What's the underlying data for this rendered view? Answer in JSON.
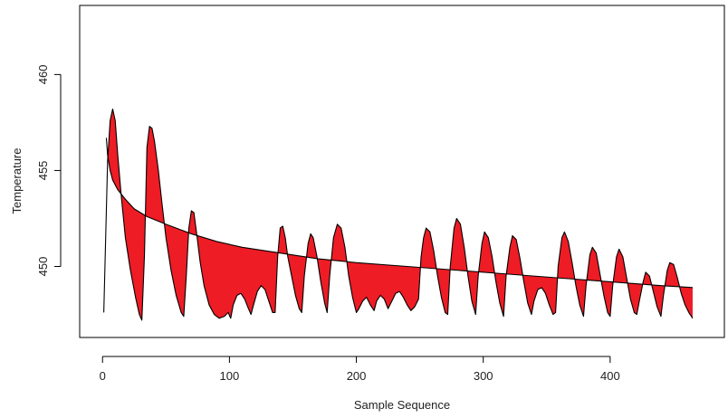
{
  "chart_data": {
    "type": "area",
    "title": "",
    "xlabel": "Sample Sequence",
    "ylabel": "Temperature",
    "xlim": [
      -18,
      490
    ],
    "ylim": [
      446.3,
      463.6
    ],
    "x_ticks": [
      0,
      100,
      200,
      300,
      400
    ],
    "y_ticks": [
      450,
      455,
      460
    ],
    "grid": false,
    "legend": "none",
    "fill_color": "#ee1c25",
    "line_color": "#000000",
    "series": [
      {
        "role": "observed",
        "points": [
          [
            1,
            447.6
          ],
          [
            4,
            455.5
          ],
          [
            6,
            457.6
          ],
          [
            8,
            458.2
          ],
          [
            10,
            457.6
          ],
          [
            12,
            455.8
          ],
          [
            15,
            453.5
          ],
          [
            18,
            451.5
          ],
          [
            22,
            449.8
          ],
          [
            26,
            448.4
          ],
          [
            29,
            447.5
          ],
          [
            31,
            447.2
          ],
          [
            33,
            450.5
          ],
          [
            35,
            456.2
          ],
          [
            37,
            457.3
          ],
          [
            39,
            457.2
          ],
          [
            41,
            456.5
          ],
          [
            44,
            455.0
          ],
          [
            47,
            453.2
          ],
          [
            50,
            451.5
          ],
          [
            54,
            449.8
          ],
          [
            58,
            448.5
          ],
          [
            62,
            447.6
          ],
          [
            64,
            447.4
          ],
          [
            66,
            449.5
          ],
          [
            68,
            452.0
          ],
          [
            70,
            452.9
          ],
          [
            72,
            452.8
          ],
          [
            74,
            451.8
          ],
          [
            77,
            450.2
          ],
          [
            80,
            449.0
          ],
          [
            84,
            448.0
          ],
          [
            88,
            447.5
          ],
          [
            92,
            447.3
          ],
          [
            96,
            447.4
          ],
          [
            99,
            447.6
          ],
          [
            101,
            447.3
          ],
          [
            103,
            448.0
          ],
          [
            106,
            448.5
          ],
          [
            109,
            448.6
          ],
          [
            112,
            448.3
          ],
          [
            115,
            447.8
          ],
          [
            117,
            447.5
          ],
          [
            119,
            448.0
          ],
          [
            122,
            448.7
          ],
          [
            125,
            449.0
          ],
          [
            128,
            448.8
          ],
          [
            131,
            448.2
          ],
          [
            134,
            447.6
          ],
          [
            136,
            447.6
          ],
          [
            138,
            450.5
          ],
          [
            140,
            452.0
          ],
          [
            142,
            452.1
          ],
          [
            144,
            451.5
          ],
          [
            146,
            450.5
          ],
          [
            149,
            449.5
          ],
          [
            152,
            448.5
          ],
          [
            155,
            447.8
          ],
          [
            157,
            447.6
          ],
          [
            159,
            449.5
          ],
          [
            162,
            451.2
          ],
          [
            164,
            451.7
          ],
          [
            166,
            451.5
          ],
          [
            169,
            450.5
          ],
          [
            172,
            449.2
          ],
          [
            175,
            448.1
          ],
          [
            177,
            447.6
          ],
          [
            179,
            449.5
          ],
          [
            182,
            451.5
          ],
          [
            185,
            452.2
          ],
          [
            188,
            452.0
          ],
          [
            191,
            451.0
          ],
          [
            194,
            449.5
          ],
          [
            197,
            448.4
          ],
          [
            200,
            447.6
          ],
          [
            202,
            447.8
          ],
          [
            205,
            448.2
          ],
          [
            208,
            448.4
          ],
          [
            211,
            448.0
          ],
          [
            214,
            447.7
          ],
          [
            216,
            448.2
          ],
          [
            219,
            448.5
          ],
          [
            222,
            448.3
          ],
          [
            225,
            447.8
          ],
          [
            228,
            448.2
          ],
          [
            231,
            448.6
          ],
          [
            234,
            448.7
          ],
          [
            237,
            448.4
          ],
          [
            240,
            448.0
          ],
          [
            243,
            447.7
          ],
          [
            246,
            447.9
          ],
          [
            249,
            448.3
          ],
          [
            251,
            450.5
          ],
          [
            253,
            451.5
          ],
          [
            255,
            452.0
          ],
          [
            258,
            451.8
          ],
          [
            261,
            450.8
          ],
          [
            264,
            449.5
          ],
          [
            267,
            448.4
          ],
          [
            270,
            447.6
          ],
          [
            272,
            447.5
          ],
          [
            274,
            450.0
          ],
          [
            277,
            452.0
          ],
          [
            279,
            452.5
          ],
          [
            282,
            452.2
          ],
          [
            285,
            451.0
          ],
          [
            288,
            449.5
          ],
          [
            291,
            448.2
          ],
          [
            294,
            447.5
          ],
          [
            296,
            449.5
          ],
          [
            299,
            451.2
          ],
          [
            301,
            451.8
          ],
          [
            304,
            451.5
          ],
          [
            307,
            450.5
          ],
          [
            310,
            449.2
          ],
          [
            313,
            448.1
          ],
          [
            316,
            447.4
          ],
          [
            318,
            449.5
          ],
          [
            321,
            451.0
          ],
          [
            323,
            451.6
          ],
          [
            326,
            451.4
          ],
          [
            329,
            450.4
          ],
          [
            332,
            449.2
          ],
          [
            335,
            448.1
          ],
          [
            338,
            447.5
          ],
          [
            340,
            448.2
          ],
          [
            343,
            448.8
          ],
          [
            346,
            448.9
          ],
          [
            349,
            448.6
          ],
          [
            352,
            448.0
          ],
          [
            355,
            447.5
          ],
          [
            357,
            447.6
          ],
          [
            359,
            450.0
          ],
          [
            362,
            451.5
          ],
          [
            364,
            451.8
          ],
          [
            367,
            451.3
          ],
          [
            370,
            450.2
          ],
          [
            373,
            449.0
          ],
          [
            376,
            448.0
          ],
          [
            379,
            447.4
          ],
          [
            381,
            449.0
          ],
          [
            384,
            450.6
          ],
          [
            386,
            451.0
          ],
          [
            389,
            450.7
          ],
          [
            392,
            449.6
          ],
          [
            395,
            448.5
          ],
          [
            398,
            447.6
          ],
          [
            400,
            447.4
          ],
          [
            402,
            449.0
          ],
          [
            405,
            450.5
          ],
          [
            407,
            450.9
          ],
          [
            410,
            450.5
          ],
          [
            413,
            449.4
          ],
          [
            416,
            448.3
          ],
          [
            419,
            447.6
          ],
          [
            421,
            447.5
          ],
          [
            423,
            448.2
          ],
          [
            426,
            449.2
          ],
          [
            428,
            449.7
          ],
          [
            431,
            449.5
          ],
          [
            434,
            448.7
          ],
          [
            437,
            447.9
          ],
          [
            440,
            447.4
          ],
          [
            442,
            448.5
          ],
          [
            445,
            449.8
          ],
          [
            447,
            450.2
          ],
          [
            450,
            450.1
          ],
          [
            453,
            449.4
          ],
          [
            456,
            448.6
          ],
          [
            459,
            448.0
          ],
          [
            462,
            447.6
          ],
          [
            465,
            447.3
          ]
        ]
      },
      {
        "role": "fitted",
        "points": [
          [
            3,
            456.7
          ],
          [
            4,
            455.8
          ],
          [
            6,
            455.0
          ],
          [
            8,
            454.5
          ],
          [
            12,
            454.0
          ],
          [
            18,
            453.5
          ],
          [
            25,
            453.0
          ],
          [
            35,
            452.6
          ],
          [
            50,
            452.2
          ],
          [
            70,
            451.7
          ],
          [
            90,
            451.3
          ],
          [
            110,
            451.0
          ],
          [
            140,
            450.7
          ],
          [
            170,
            450.4
          ],
          [
            200,
            450.2
          ],
          [
            240,
            450.0
          ],
          [
            280,
            449.8
          ],
          [
            320,
            449.6
          ],
          [
            360,
            449.4
          ],
          [
            400,
            449.2
          ],
          [
            440,
            449.0
          ],
          [
            465,
            448.9
          ]
        ]
      }
    ]
  }
}
